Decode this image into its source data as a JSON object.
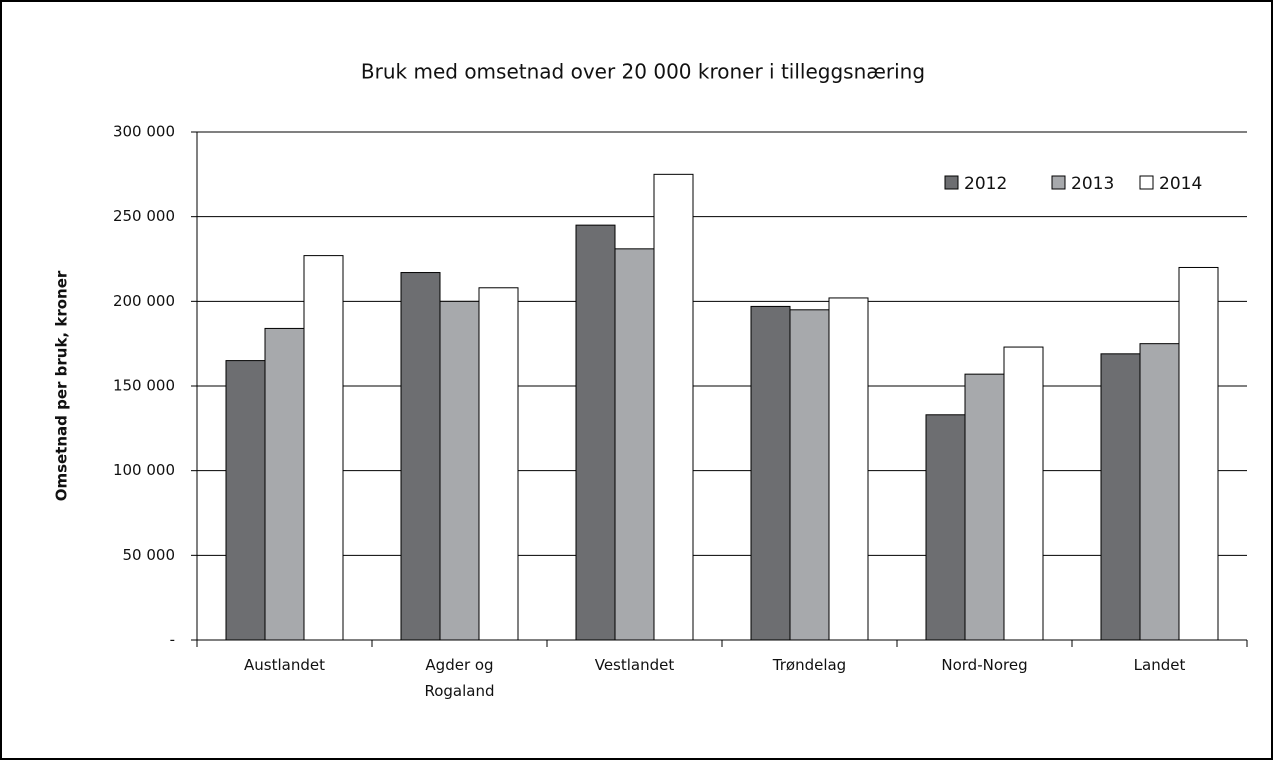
{
  "chart_data": {
    "type": "bar",
    "title": "Bruk med omsetnad over 20 000 kroner i tilleggsnæring",
    "y_label": "Omsetnad per bruk, kroner",
    "categories": [
      "Austlandet",
      "Agder og Rogaland",
      "Vestlandet",
      "Trøndelag",
      "Nord-Noreg",
      "Landet"
    ],
    "series": [
      {
        "name": "2012",
        "color": "#6d6e71",
        "values": [
          165000,
          217000,
          245000,
          197000,
          133000,
          169000
        ]
      },
      {
        "name": "2013",
        "color": "#a7a9ac",
        "values": [
          184000,
          200000,
          231000,
          195000,
          157000,
          175000
        ]
      },
      {
        "name": "2014",
        "color": "#ffffff",
        "values": [
          227000,
          208000,
          275000,
          202000,
          173000,
          220000
        ]
      }
    ],
    "ylim": [
      0,
      300000
    ],
    "yticks": [
      {
        "value": 0,
        "label": "-"
      },
      {
        "value": 50000,
        "label": "50 000"
      },
      {
        "value": 100000,
        "label": "100 000"
      },
      {
        "value": 150000,
        "label": "150 000"
      },
      {
        "value": 200000,
        "label": "200 000"
      },
      {
        "value": 250000,
        "label": "250 000"
      },
      {
        "value": 300000,
        "label": "300 000"
      }
    ],
    "grid": true,
    "legend": "top-right"
  }
}
